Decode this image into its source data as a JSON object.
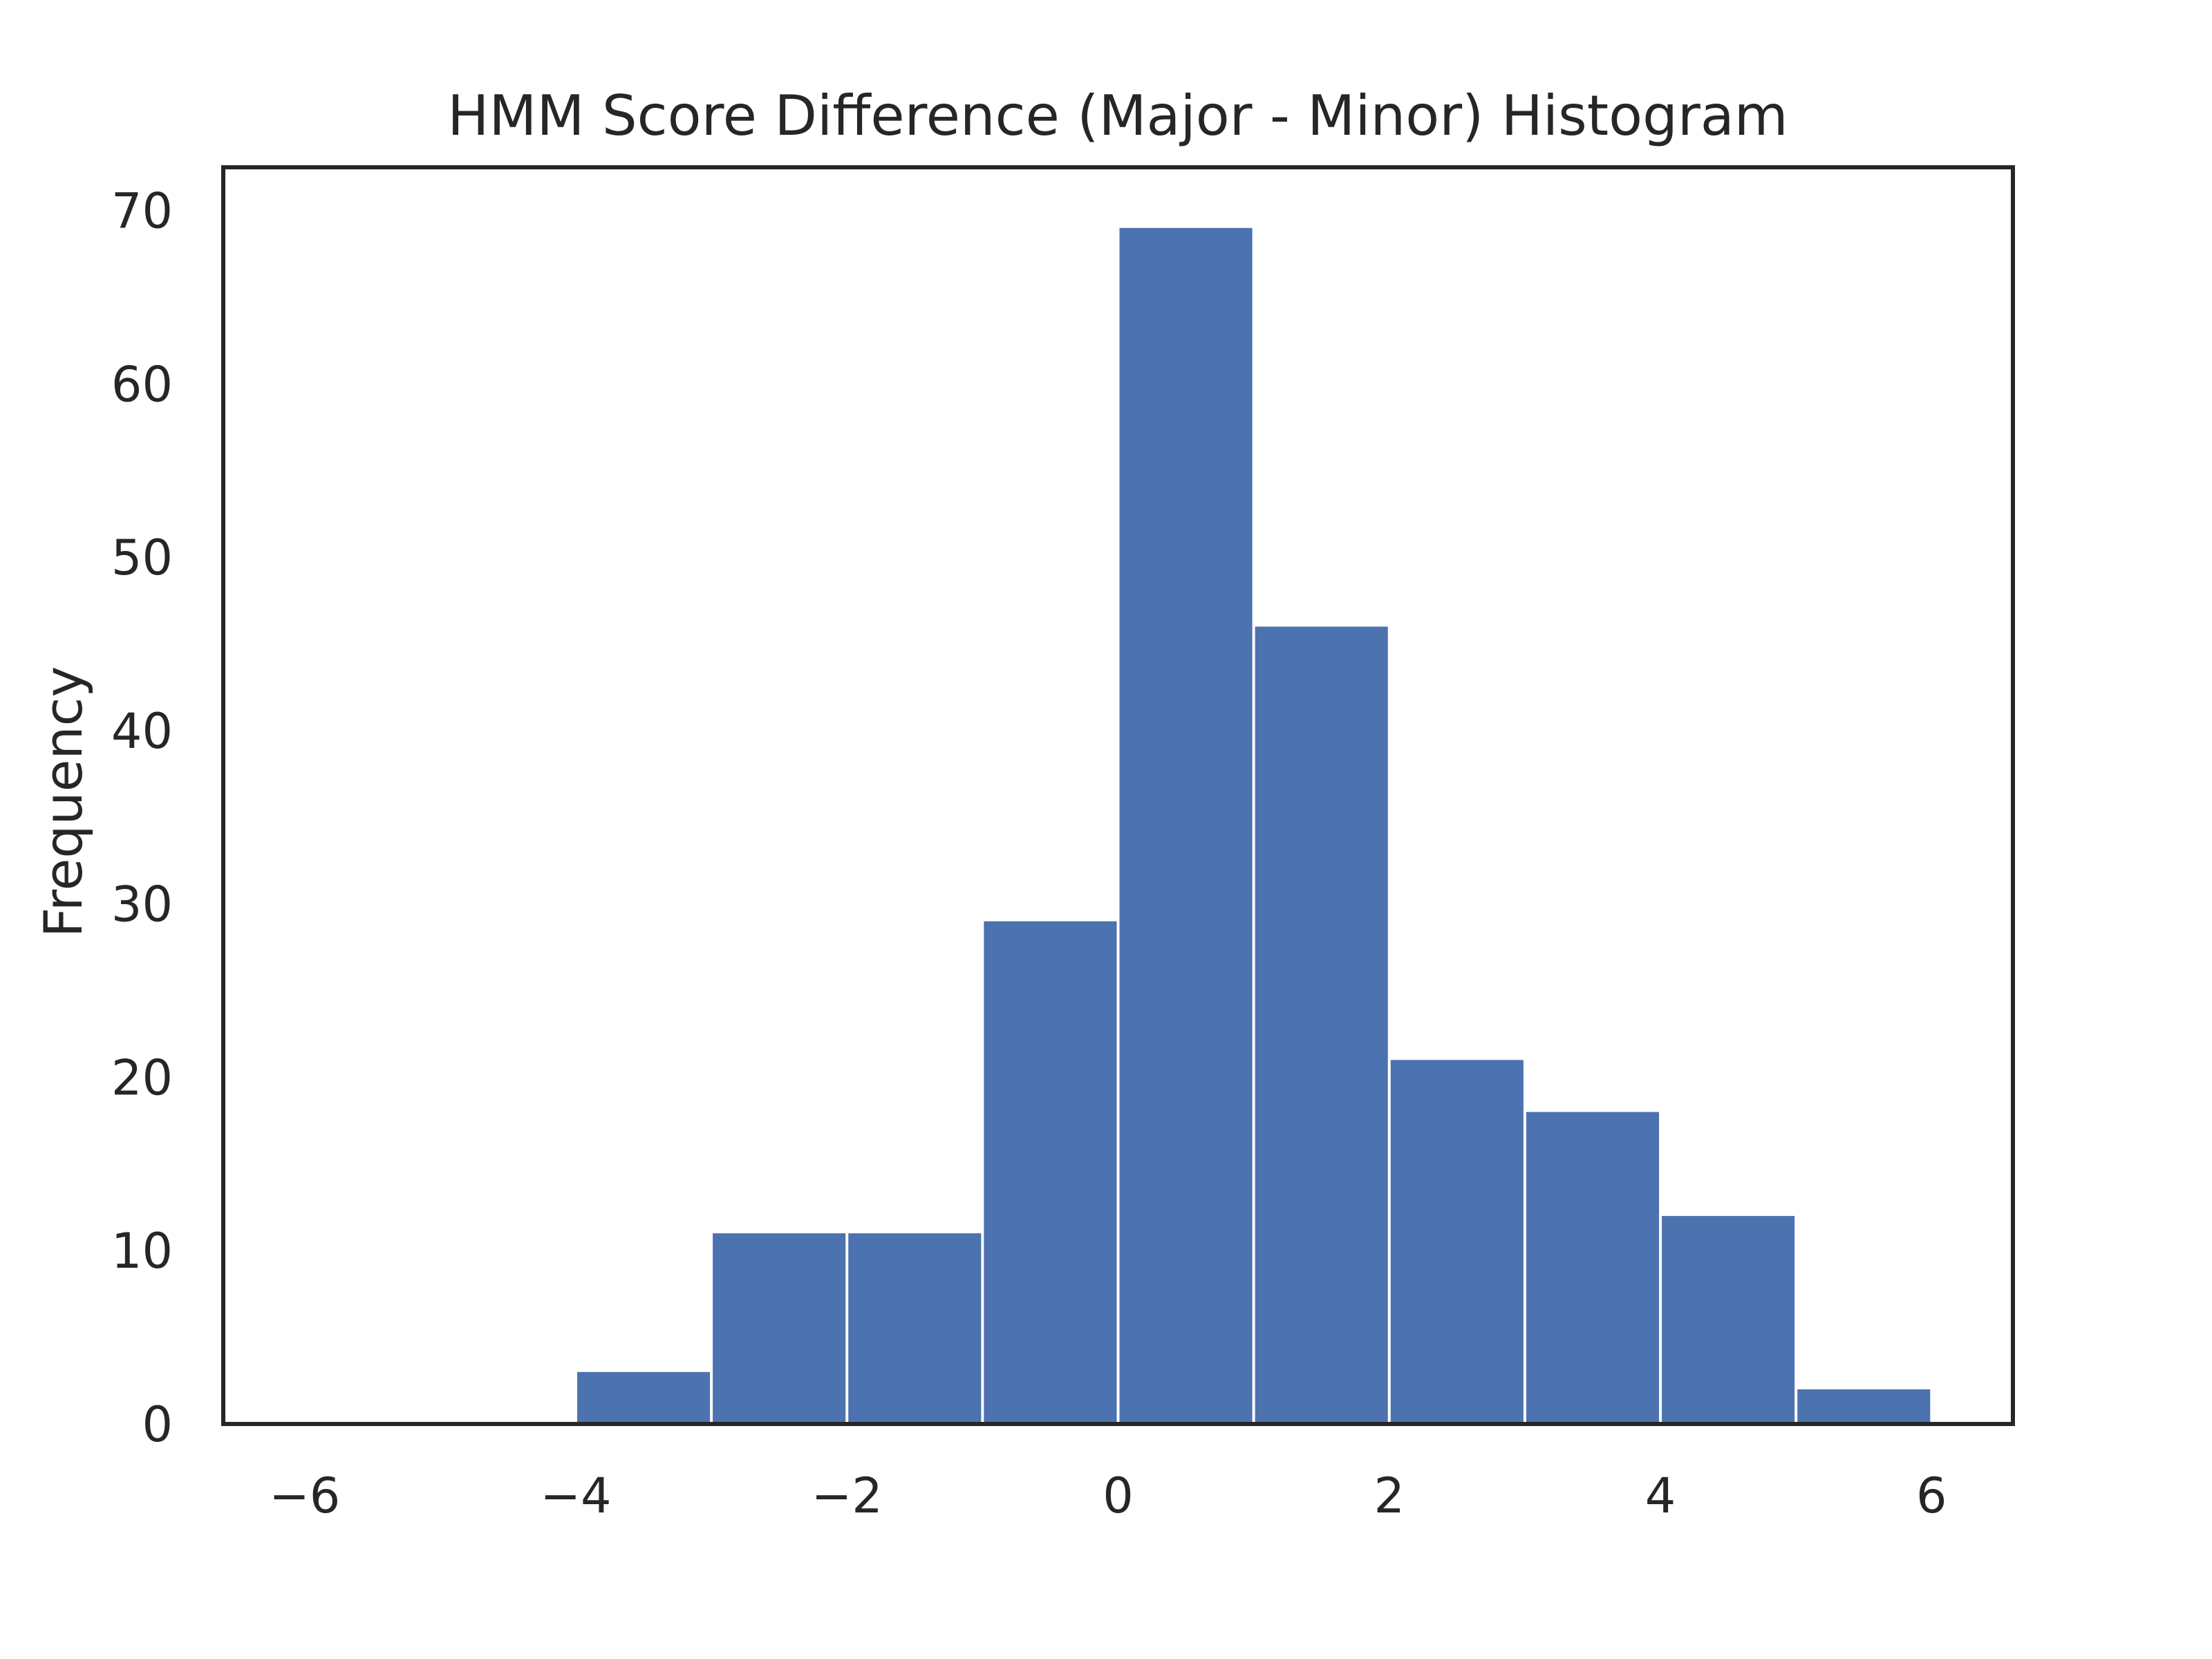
{
  "chart_data": {
    "type": "bar",
    "title": "HMM Score Difference (Major - Minor) Histogram",
    "xlabel": "",
    "ylabel": "Frequency",
    "bin_edges": [
      -6,
      -5,
      -4,
      -3,
      -2,
      -1,
      0,
      1,
      2,
      3,
      4,
      5,
      6
    ],
    "values": [
      0,
      0,
      3,
      11,
      11,
      29,
      69,
      46,
      21,
      18,
      12,
      2
    ],
    "xlim": [
      -6.6,
      6.6
    ],
    "ylim": [
      0,
      72.5
    ],
    "xticks": [
      -6,
      -4,
      -2,
      0,
      2,
      4,
      6
    ],
    "xtick_labels": [
      "−6",
      "−4",
      "−2",
      "0",
      "2",
      "4",
      "6"
    ],
    "yticks": [
      0,
      10,
      20,
      30,
      40,
      50,
      60,
      70
    ],
    "ytick_labels": [
      "0",
      "10",
      "20",
      "30",
      "40",
      "50",
      "60",
      "70"
    ],
    "grid": false,
    "bar_color": "#4c72b0",
    "axis_color": "#262626"
  }
}
